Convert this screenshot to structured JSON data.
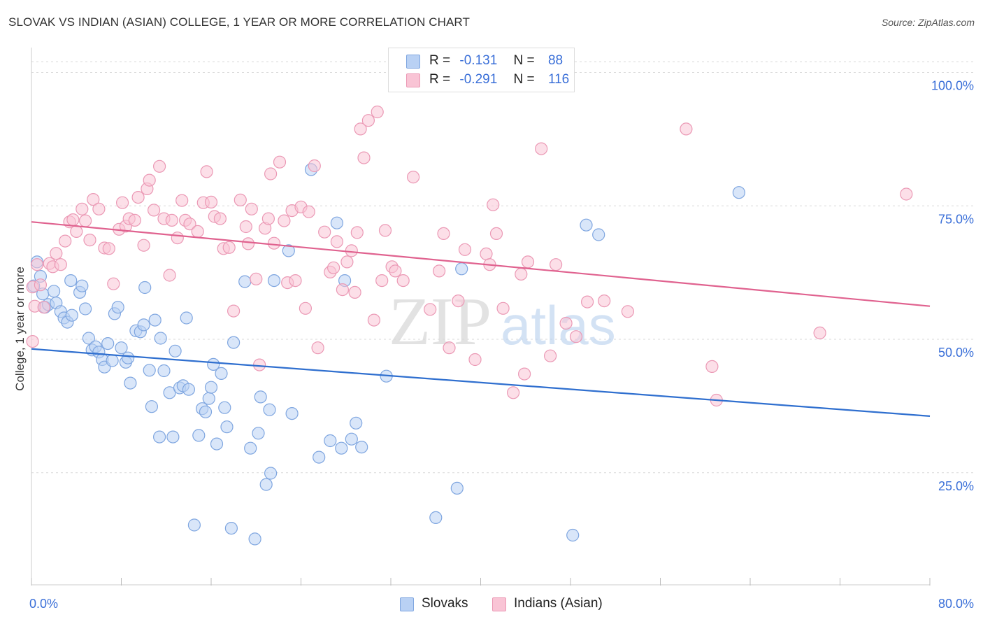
{
  "title": "SLOVAK VS INDIAN (ASIAN) COLLEGE, 1 YEAR OR MORE CORRELATION CHART",
  "source": "Source: ZipAtlas.com",
  "watermark": {
    "zip": "ZIP",
    "atlas": "atlas"
  },
  "legend": {
    "r_label": "R =",
    "n_label": "N =",
    "rows": [
      {
        "r": "-0.131",
        "n": "88"
      },
      {
        "r": "-0.291",
        "n": "116"
      }
    ]
  },
  "colors": {
    "slovaks_fill": "#b9d1f4",
    "slovaks_stroke": "#7fa6e0",
    "slovaks_line": "#2f6fcf",
    "indians_fill": "#f9c4d5",
    "indians_stroke": "#eb99b5",
    "indians_line": "#e0628f",
    "tick_label": "#3a6fd8",
    "grid": "#d8d8d8"
  },
  "chart_data": {
    "type": "scatter",
    "title": "SLOVAK VS INDIAN (ASIAN) COLLEGE, 1 YEAR OR MORE CORRELATION CHART",
    "xlabel": "",
    "ylabel": "College, 1 year or more",
    "xlim": [
      0,
      80
    ],
    "ylim": [
      4,
      104
    ],
    "x_tick_labels": [
      {
        "value": 0,
        "label": "0.0%"
      },
      {
        "value": 80,
        "label": "80.0%"
      }
    ],
    "x_minor_ticks": [
      0,
      8,
      16,
      24,
      32,
      40,
      48,
      56,
      64,
      72,
      80
    ],
    "y_ticks": [
      {
        "value": 25,
        "label": "25.0%"
      },
      {
        "value": 50,
        "label": "50.0%"
      },
      {
        "value": 75,
        "label": "75.0%"
      },
      {
        "value": 100,
        "label": "100.0%"
      }
    ],
    "grid": true,
    "series": [
      {
        "name": "Slovaks",
        "r": -0.131,
        "n": 88,
        "trend": {
          "x": [
            0,
            80
          ],
          "y": [
            48.2,
            35.6
          ]
        },
        "points": [
          [
            0.5,
            64.5
          ],
          [
            0.8,
            61.8
          ],
          [
            1.0,
            58.5
          ],
          [
            1.2,
            56.0
          ],
          [
            1.5,
            56.5
          ],
          [
            2.0,
            59.0
          ],
          [
            2.2,
            56.8
          ],
          [
            2.6,
            55.2
          ],
          [
            2.9,
            54.0
          ],
          [
            3.2,
            53.2
          ],
          [
            3.6,
            54.5
          ],
          [
            3.5,
            61.0
          ],
          [
            4.3,
            58.8
          ],
          [
            4.5,
            60.0
          ],
          [
            4.8,
            55.7
          ],
          [
            5.1,
            50.2
          ],
          [
            5.4,
            48.0
          ],
          [
            5.7,
            48.6
          ],
          [
            6.0,
            47.6
          ],
          [
            6.3,
            46.2
          ],
          [
            6.5,
            44.8
          ],
          [
            6.8,
            49.2
          ],
          [
            7.2,
            46.0
          ],
          [
            7.4,
            54.8
          ],
          [
            7.7,
            56.0
          ],
          [
            8.0,
            48.4
          ],
          [
            8.4,
            45.7
          ],
          [
            8.6,
            46.5
          ],
          [
            8.8,
            41.8
          ],
          [
            9.3,
            51.6
          ],
          [
            9.7,
            51.4
          ],
          [
            10.0,
            52.7
          ],
          [
            10.1,
            59.7
          ],
          [
            10.5,
            44.2
          ],
          [
            10.7,
            37.4
          ],
          [
            11.0,
            53.6
          ],
          [
            11.4,
            31.7
          ],
          [
            11.5,
            50.2
          ],
          [
            11.8,
            44.1
          ],
          [
            12.3,
            40.0
          ],
          [
            12.6,
            31.7
          ],
          [
            12.8,
            47.8
          ],
          [
            13.2,
            40.9
          ],
          [
            13.5,
            41.3
          ],
          [
            13.8,
            54.0
          ],
          [
            14.0,
            40.6
          ],
          [
            14.5,
            15.2
          ],
          [
            14.9,
            32.0
          ],
          [
            15.2,
            37.0
          ],
          [
            15.5,
            36.4
          ],
          [
            15.8,
            38.9
          ],
          [
            16.0,
            41.0
          ],
          [
            16.2,
            45.3
          ],
          [
            16.5,
            30.4
          ],
          [
            16.9,
            43.6
          ],
          [
            17.2,
            37.2
          ],
          [
            17.4,
            33.6
          ],
          [
            17.8,
            14.6
          ],
          [
            18.0,
            49.4
          ],
          [
            19.0,
            60.8
          ],
          [
            19.5,
            29.6
          ],
          [
            19.9,
            12.6
          ],
          [
            20.2,
            32.4
          ],
          [
            20.4,
            39.2
          ],
          [
            20.9,
            22.8
          ],
          [
            21.2,
            36.8
          ],
          [
            21.3,
            24.9
          ],
          [
            21.6,
            61.0
          ],
          [
            22.9,
            66.6
          ],
          [
            23.2,
            36.1
          ],
          [
            24.9,
            81.8
          ],
          [
            25.6,
            27.9
          ],
          [
            26.6,
            31.0
          ],
          [
            27.2,
            71.8
          ],
          [
            27.6,
            29.6
          ],
          [
            27.9,
            61.0
          ],
          [
            28.5,
            31.3
          ],
          [
            28.9,
            34.3
          ],
          [
            29.4,
            29.8
          ],
          [
            31.6,
            43.1
          ],
          [
            36.0,
            16.6
          ],
          [
            37.9,
            22.1
          ],
          [
            38.3,
            63.2
          ],
          [
            48.2,
            13.3
          ],
          [
            49.4,
            71.4
          ],
          [
            50.5,
            69.6
          ],
          [
            63.0,
            77.5
          ],
          [
            0.2,
            60.0
          ]
        ]
      },
      {
        "name": "Indians (Asian)",
        "r": -0.291,
        "n": 116,
        "trend": {
          "x": [
            0,
            80
          ],
          "y": [
            72.0,
            56.2
          ]
        },
        "points": [
          [
            0.1,
            59.8
          ],
          [
            0.1,
            49.6
          ],
          [
            0.3,
            56.2
          ],
          [
            0.5,
            64.0
          ],
          [
            0.8,
            60.2
          ],
          [
            1.1,
            56.0
          ],
          [
            1.6,
            64.2
          ],
          [
            1.9,
            63.6
          ],
          [
            2.2,
            66.1
          ],
          [
            2.6,
            64.0
          ],
          [
            3.0,
            68.4
          ],
          [
            3.4,
            72.0
          ],
          [
            3.7,
            72.4
          ],
          [
            4.0,
            70.2
          ],
          [
            4.5,
            74.4
          ],
          [
            4.8,
            72.2
          ],
          [
            5.2,
            68.6
          ],
          [
            5.5,
            76.2
          ],
          [
            6.0,
            74.4
          ],
          [
            6.5,
            67.1
          ],
          [
            6.9,
            67.0
          ],
          [
            7.3,
            60.4
          ],
          [
            7.8,
            70.6
          ],
          [
            8.1,
            75.6
          ],
          [
            8.4,
            71.2
          ],
          [
            8.7,
            72.6
          ],
          [
            9.2,
            72.3
          ],
          [
            9.5,
            76.6
          ],
          [
            10.0,
            67.6
          ],
          [
            10.3,
            78.2
          ],
          [
            10.5,
            79.8
          ],
          [
            10.9,
            74.2
          ],
          [
            11.4,
            82.4
          ],
          [
            11.8,
            72.6
          ],
          [
            12.3,
            62.0
          ],
          [
            12.5,
            72.3
          ],
          [
            13.0,
            69.0
          ],
          [
            13.4,
            76.0
          ],
          [
            13.7,
            72.3
          ],
          [
            14.1,
            71.6
          ],
          [
            14.8,
            70.2
          ],
          [
            15.3,
            75.6
          ],
          [
            15.6,
            81.4
          ],
          [
            16.0,
            75.7
          ],
          [
            16.3,
            73.0
          ],
          [
            16.8,
            72.6
          ],
          [
            17.1,
            67.0
          ],
          [
            17.6,
            67.2
          ],
          [
            18.0,
            55.3
          ],
          [
            18.6,
            76.1
          ],
          [
            19.1,
            71.1
          ],
          [
            19.3,
            67.9
          ],
          [
            19.6,
            74.4
          ],
          [
            20.0,
            61.3
          ],
          [
            20.3,
            45.2
          ],
          [
            20.8,
            70.8
          ],
          [
            21.1,
            72.6
          ],
          [
            21.3,
            81.0
          ],
          [
            21.6,
            68.0
          ],
          [
            22.1,
            83.2
          ],
          [
            22.5,
            72.2
          ],
          [
            22.8,
            60.6
          ],
          [
            23.2,
            74.1
          ],
          [
            23.5,
            61.0
          ],
          [
            24.0,
            74.8
          ],
          [
            24.4,
            55.8
          ],
          [
            24.7,
            73.9
          ],
          [
            25.2,
            82.5
          ],
          [
            25.5,
            48.4
          ],
          [
            26.1,
            70.1
          ],
          [
            26.6,
            62.6
          ],
          [
            26.9,
            63.4
          ],
          [
            27.2,
            68.3
          ],
          [
            27.7,
            59.3
          ],
          [
            28.1,
            64.5
          ],
          [
            28.5,
            66.6
          ],
          [
            28.8,
            58.8
          ],
          [
            29.3,
            89.4
          ],
          [
            29.6,
            84.0
          ],
          [
            30.0,
            91.0
          ],
          [
            30.5,
            53.6
          ],
          [
            30.8,
            92.6
          ],
          [
            31.2,
            61.0
          ],
          [
            31.5,
            70.4
          ],
          [
            32.1,
            63.6
          ],
          [
            32.4,
            62.8
          ],
          [
            33.1,
            61.0
          ],
          [
            34.0,
            80.4
          ],
          [
            35.5,
            55.6
          ],
          [
            36.3,
            62.8
          ],
          [
            36.7,
            69.8
          ],
          [
            37.2,
            48.4
          ],
          [
            38.0,
            57.2
          ],
          [
            38.6,
            66.8
          ],
          [
            39.5,
            46.2
          ],
          [
            40.5,
            66.0
          ],
          [
            40.8,
            64.0
          ],
          [
            41.1,
            75.2
          ],
          [
            41.4,
            69.8
          ],
          [
            42.0,
            55.8
          ],
          [
            42.9,
            40.0
          ],
          [
            43.6,
            62.2
          ],
          [
            43.9,
            43.5
          ],
          [
            44.2,
            64.5
          ],
          [
            45.4,
            85.7
          ],
          [
            46.2,
            46.9
          ],
          [
            46.7,
            64.0
          ],
          [
            47.6,
            53.0
          ],
          [
            48.5,
            50.5
          ],
          [
            49.5,
            57.0
          ],
          [
            51.0,
            57.2
          ],
          [
            53.1,
            55.2
          ],
          [
            60.6,
            44.9
          ],
          [
            61.0,
            38.6
          ],
          [
            58.3,
            89.4
          ],
          [
            70.2,
            51.2
          ],
          [
            77.9,
            77.2
          ],
          [
            29.0,
            70.0
          ]
        ]
      }
    ]
  }
}
